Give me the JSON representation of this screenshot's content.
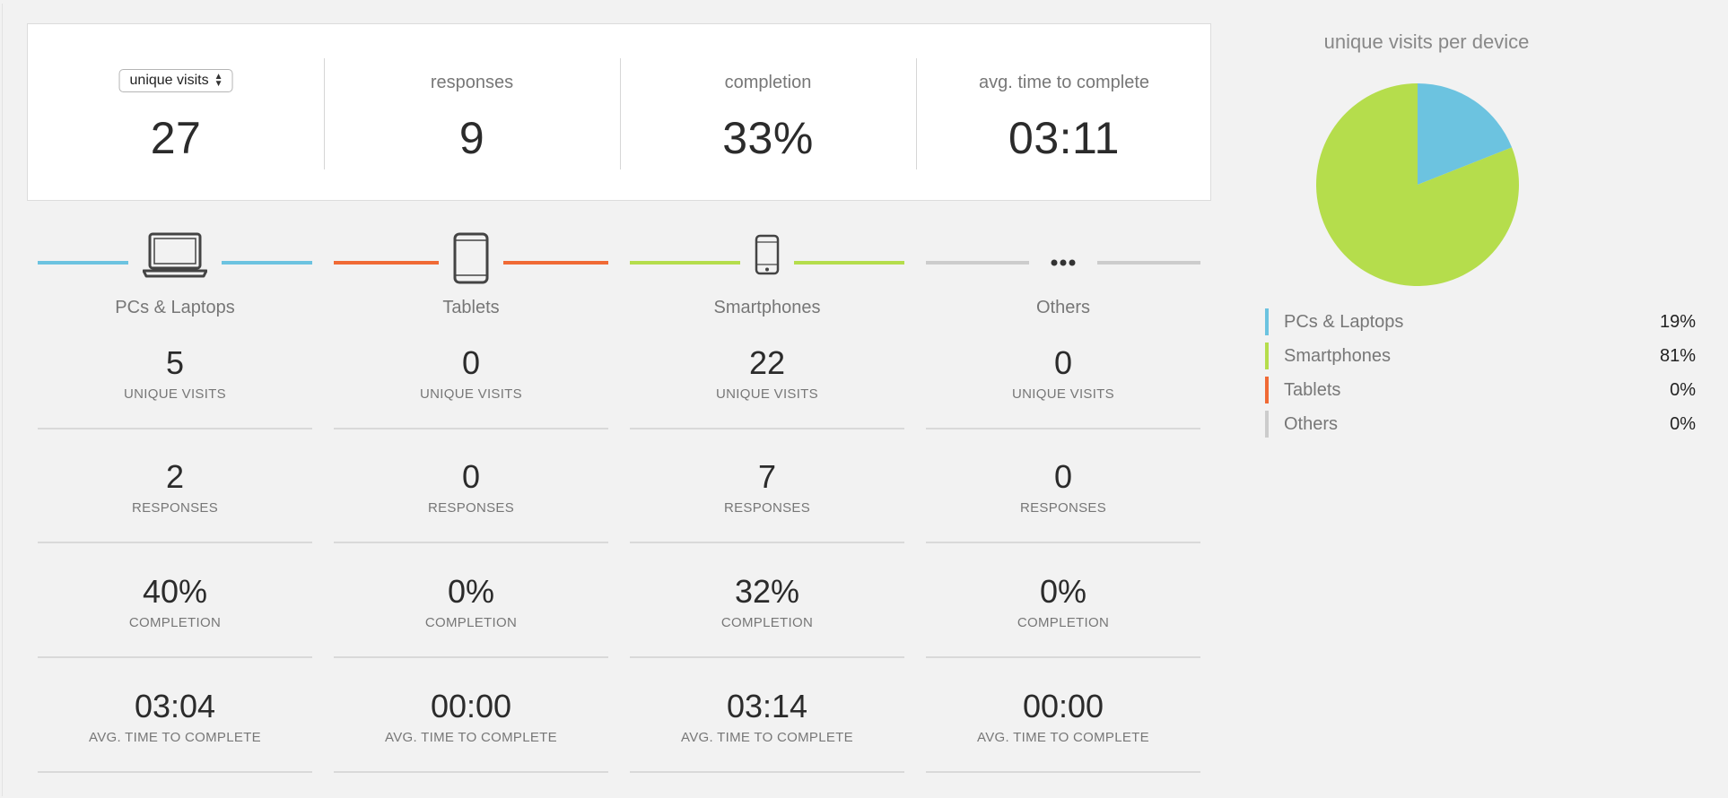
{
  "summary": {
    "visits_select": "unique visits",
    "visits_value": "27",
    "responses_label": "responses",
    "responses_value": "9",
    "completion_label": "completion",
    "completion_value": "33%",
    "avg_label": "avg. time to complete",
    "avg_value": "03:11"
  },
  "captions": {
    "unique_visits": "UNIQUE VISITS",
    "responses": "RESPONSES",
    "completion": "COMPLETION",
    "avg_time": "AVG. TIME TO COMPLETE"
  },
  "devices": [
    {
      "name": "PCs & Laptops",
      "icon": "laptop-icon",
      "color": "#6cc3e0",
      "unique_visits": "5",
      "responses": "2",
      "completion": "40%",
      "avg_time": "03:04"
    },
    {
      "name": "Tablets",
      "icon": "tablet-icon",
      "color": "#f06a35",
      "unique_visits": "0",
      "responses": "0",
      "completion": "0%",
      "avg_time": "00:00"
    },
    {
      "name": "Smartphones",
      "icon": "smartphone-icon",
      "color": "#b5dd4c",
      "unique_visits": "22",
      "responses": "7",
      "completion": "32%",
      "avg_time": "03:14"
    },
    {
      "name": "Others",
      "icon": "more-dots-icon",
      "color": "#cccccc",
      "unique_visits": "0",
      "responses": "0",
      "completion": "0%",
      "avg_time": "00:00"
    }
  ],
  "chart_data": {
    "type": "pie",
    "title": "unique visits per device",
    "slices": [
      {
        "label": "PCs & Laptops",
        "value": 19,
        "display": "19%",
        "color": "#6cc3e0"
      },
      {
        "label": "Smartphones",
        "value": 81,
        "display": "81%",
        "color": "#b5dd4c"
      },
      {
        "label": "Tablets",
        "value": 0,
        "display": "0%",
        "color": "#f06a35"
      },
      {
        "label": "Others",
        "value": 0,
        "display": "0%",
        "color": "#cccccc"
      }
    ],
    "legend_placement": "bottom"
  }
}
